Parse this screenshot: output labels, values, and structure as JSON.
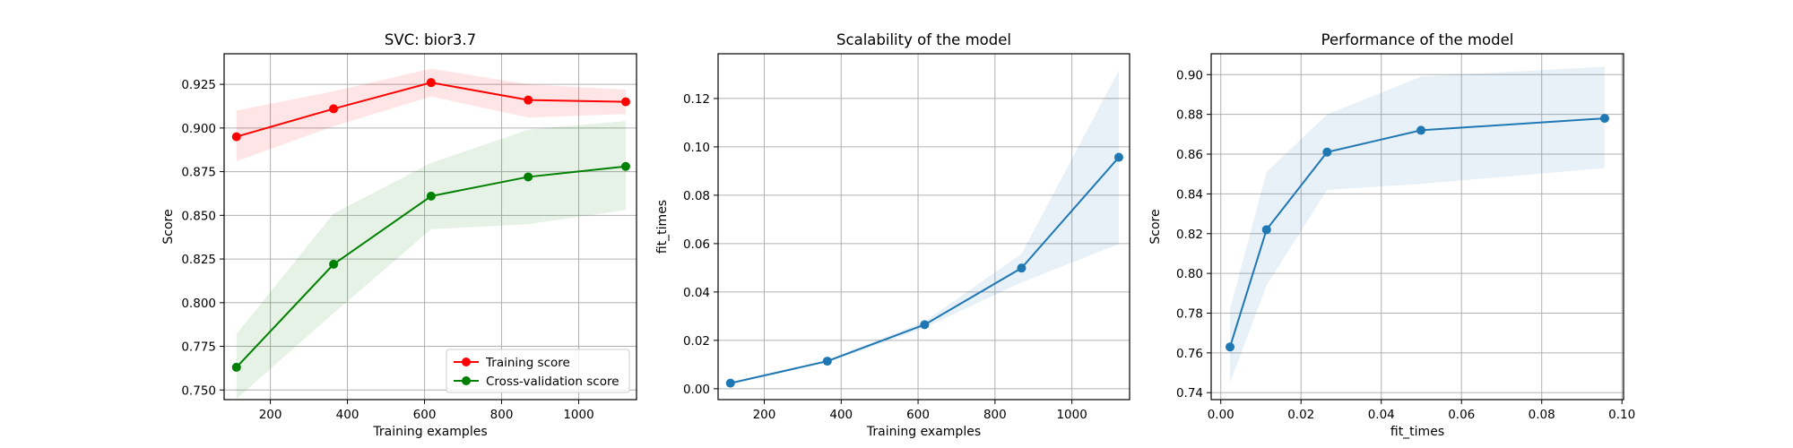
{
  "chart_data": [
    {
      "type": "line",
      "title": "SVC: bior3.7",
      "xlabel": "Training examples",
      "ylabel": "Score",
      "xlim": [
        80,
        1150
      ],
      "ylim": [
        0.7445,
        0.9425
      ],
      "xticks": [
        200,
        400,
        600,
        800,
        1000
      ],
      "yticks": [
        0.75,
        0.775,
        0.8,
        0.825,
        0.85,
        0.875,
        0.9,
        0.925
      ],
      "ytick_decimals": 3,
      "grid": true,
      "legend": "lower-right",
      "x": [
        112,
        364,
        617,
        869,
        1122
      ],
      "series": [
        {
          "name": "Training score",
          "color": "#ff0000",
          "values": [
            0.895,
            0.911,
            0.926,
            0.916,
            0.915
          ],
          "lower": [
            0.881,
            0.901,
            0.918,
            0.906,
            0.908
          ],
          "upper": [
            0.91,
            0.921,
            0.934,
            0.925,
            0.922
          ]
        },
        {
          "name": "Cross-validation score",
          "color": "#008000",
          "values": [
            0.763,
            0.822,
            0.861,
            0.872,
            0.878
          ],
          "lower": [
            0.745,
            0.794,
            0.842,
            0.845,
            0.853
          ],
          "upper": [
            0.782,
            0.851,
            0.88,
            0.899,
            0.904
          ]
        }
      ]
    },
    {
      "type": "line",
      "title": "Scalability of the model",
      "xlabel": "Training examples",
      "ylabel": "fit_times",
      "xlim": [
        80,
        1150
      ],
      "ylim": [
        -0.0045,
        0.1385
      ],
      "xticks": [
        200,
        400,
        600,
        800,
        1000
      ],
      "yticks": [
        0.0,
        0.02,
        0.04,
        0.06,
        0.08,
        0.1,
        0.12
      ],
      "ytick_decimals": 2,
      "grid": true,
      "x": [
        112,
        364,
        617,
        869,
        1122
      ],
      "series": [
        {
          "name": "",
          "color": "#1f77b4",
          "values": [
            0.0023,
            0.0114,
            0.0265,
            0.0499,
            0.0957
          ],
          "lower": [
            0.0021,
            0.0108,
            0.0252,
            0.044,
            0.0598
          ],
          "upper": [
            0.0026,
            0.012,
            0.0278,
            0.0558,
            0.1316
          ]
        }
      ]
    },
    {
      "type": "line",
      "title": "Performance of the model",
      "xlabel": "fit_times",
      "ylabel": "Score",
      "xlim": [
        -0.0024,
        0.1004
      ],
      "ylim": [
        0.7365,
        0.9105
      ],
      "xticks": [
        0.0,
        0.02,
        0.04,
        0.06,
        0.08,
        0.1
      ],
      "xtick_decimals": 2,
      "yticks": [
        0.74,
        0.76,
        0.78,
        0.8,
        0.82,
        0.84,
        0.86,
        0.88,
        0.9
      ],
      "ytick_decimals": 2,
      "grid": true,
      "x": [
        0.0023,
        0.0114,
        0.0265,
        0.0499,
        0.0957
      ],
      "series": [
        {
          "name": "",
          "color": "#1f77b4",
          "values": [
            0.763,
            0.822,
            0.861,
            0.872,
            0.878
          ],
          "lower": [
            0.745,
            0.794,
            0.842,
            0.845,
            0.853
          ],
          "upper": [
            0.782,
            0.851,
            0.88,
            0.899,
            0.904
          ]
        }
      ]
    }
  ]
}
